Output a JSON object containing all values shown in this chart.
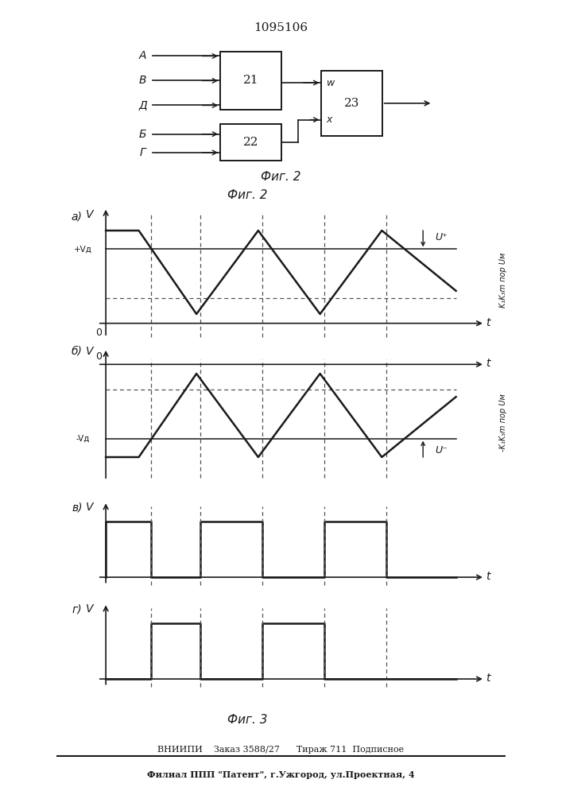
{
  "title": "1095106",
  "fig2_caption": "Фиг. 2",
  "fig3_caption": "Фиг. 3",
  "footer_line1": "ВНИИПИ    Заказ 3588/27      Тираж 711  Подписное",
  "footer_line2": "Филиал ППП \"Патент\", г.Ужгород, ул.Проектная, 4",
  "line_color": "#1a1a1a",
  "dashed_color": "#555555",
  "bg_color": "#ffffff"
}
